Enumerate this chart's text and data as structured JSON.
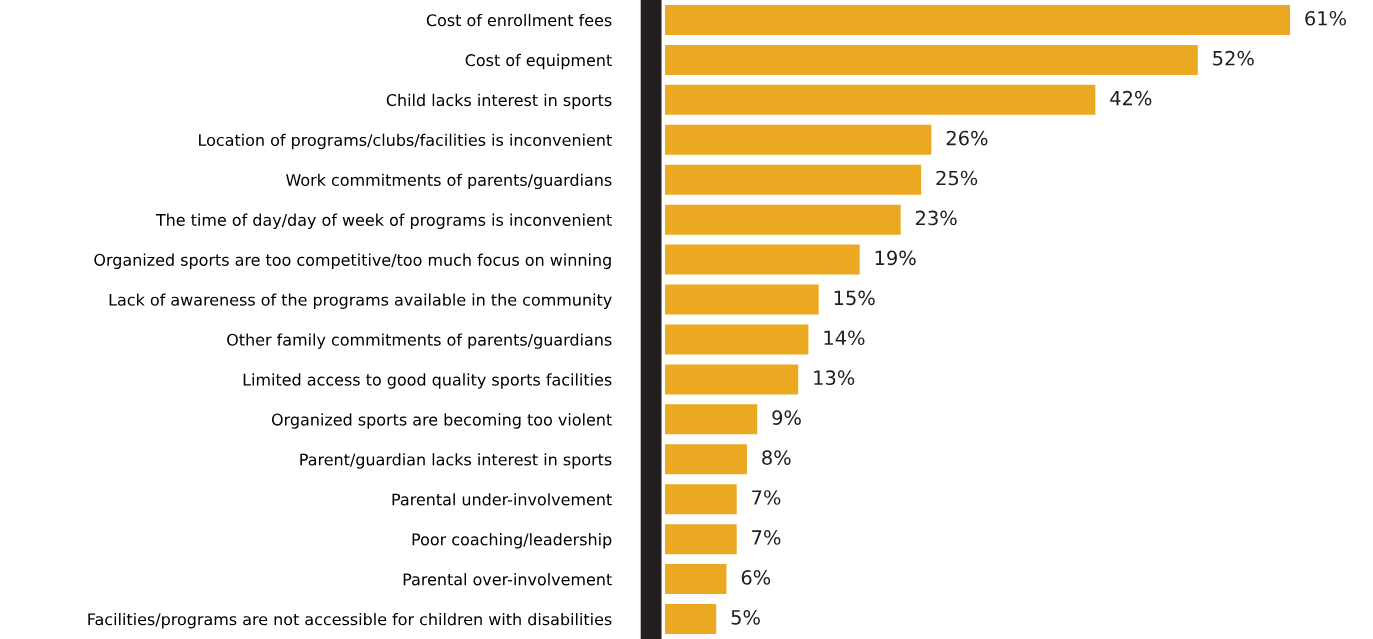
{
  "chart_data": {
    "type": "bar",
    "orientation": "horizontal",
    "categories": [
      "Cost of enrollment fees",
      "Cost of equipment",
      "Child lacks interest in sports",
      "Location of programs/clubs/facilities is inconvenient",
      "Work commitments of parents/guardians",
      "The time of day/day of week of programs is inconvenient",
      "Organized sports are too competitive/too much focus on winning",
      "Lack of awareness of the programs available in the community",
      "Other family commitments of parents/guardians",
      "Limited access to good quality sports facilities",
      "Organized sports are becoming too violent",
      "Parent/guardian lacks interest in sports",
      "Parental under-involvement",
      "Poor coaching/leadership",
      "Parental over-involvement",
      "Facilities/programs are not accessible for children with disabilities"
    ],
    "values": [
      61,
      52,
      42,
      26,
      25,
      23,
      19,
      15,
      14,
      13,
      9,
      8,
      7,
      7,
      6,
      5
    ],
    "value_labels": [
      "61%",
      "52%",
      "42%",
      "26%",
      "25%",
      "23%",
      "19%",
      "15%",
      "14%",
      "13%",
      "9%",
      "8%",
      "7%",
      "7%",
      "6%",
      "5%"
    ],
    "color": "#eaa920",
    "tick_labels": "y",
    "grid": false,
    "legend": false
  }
}
